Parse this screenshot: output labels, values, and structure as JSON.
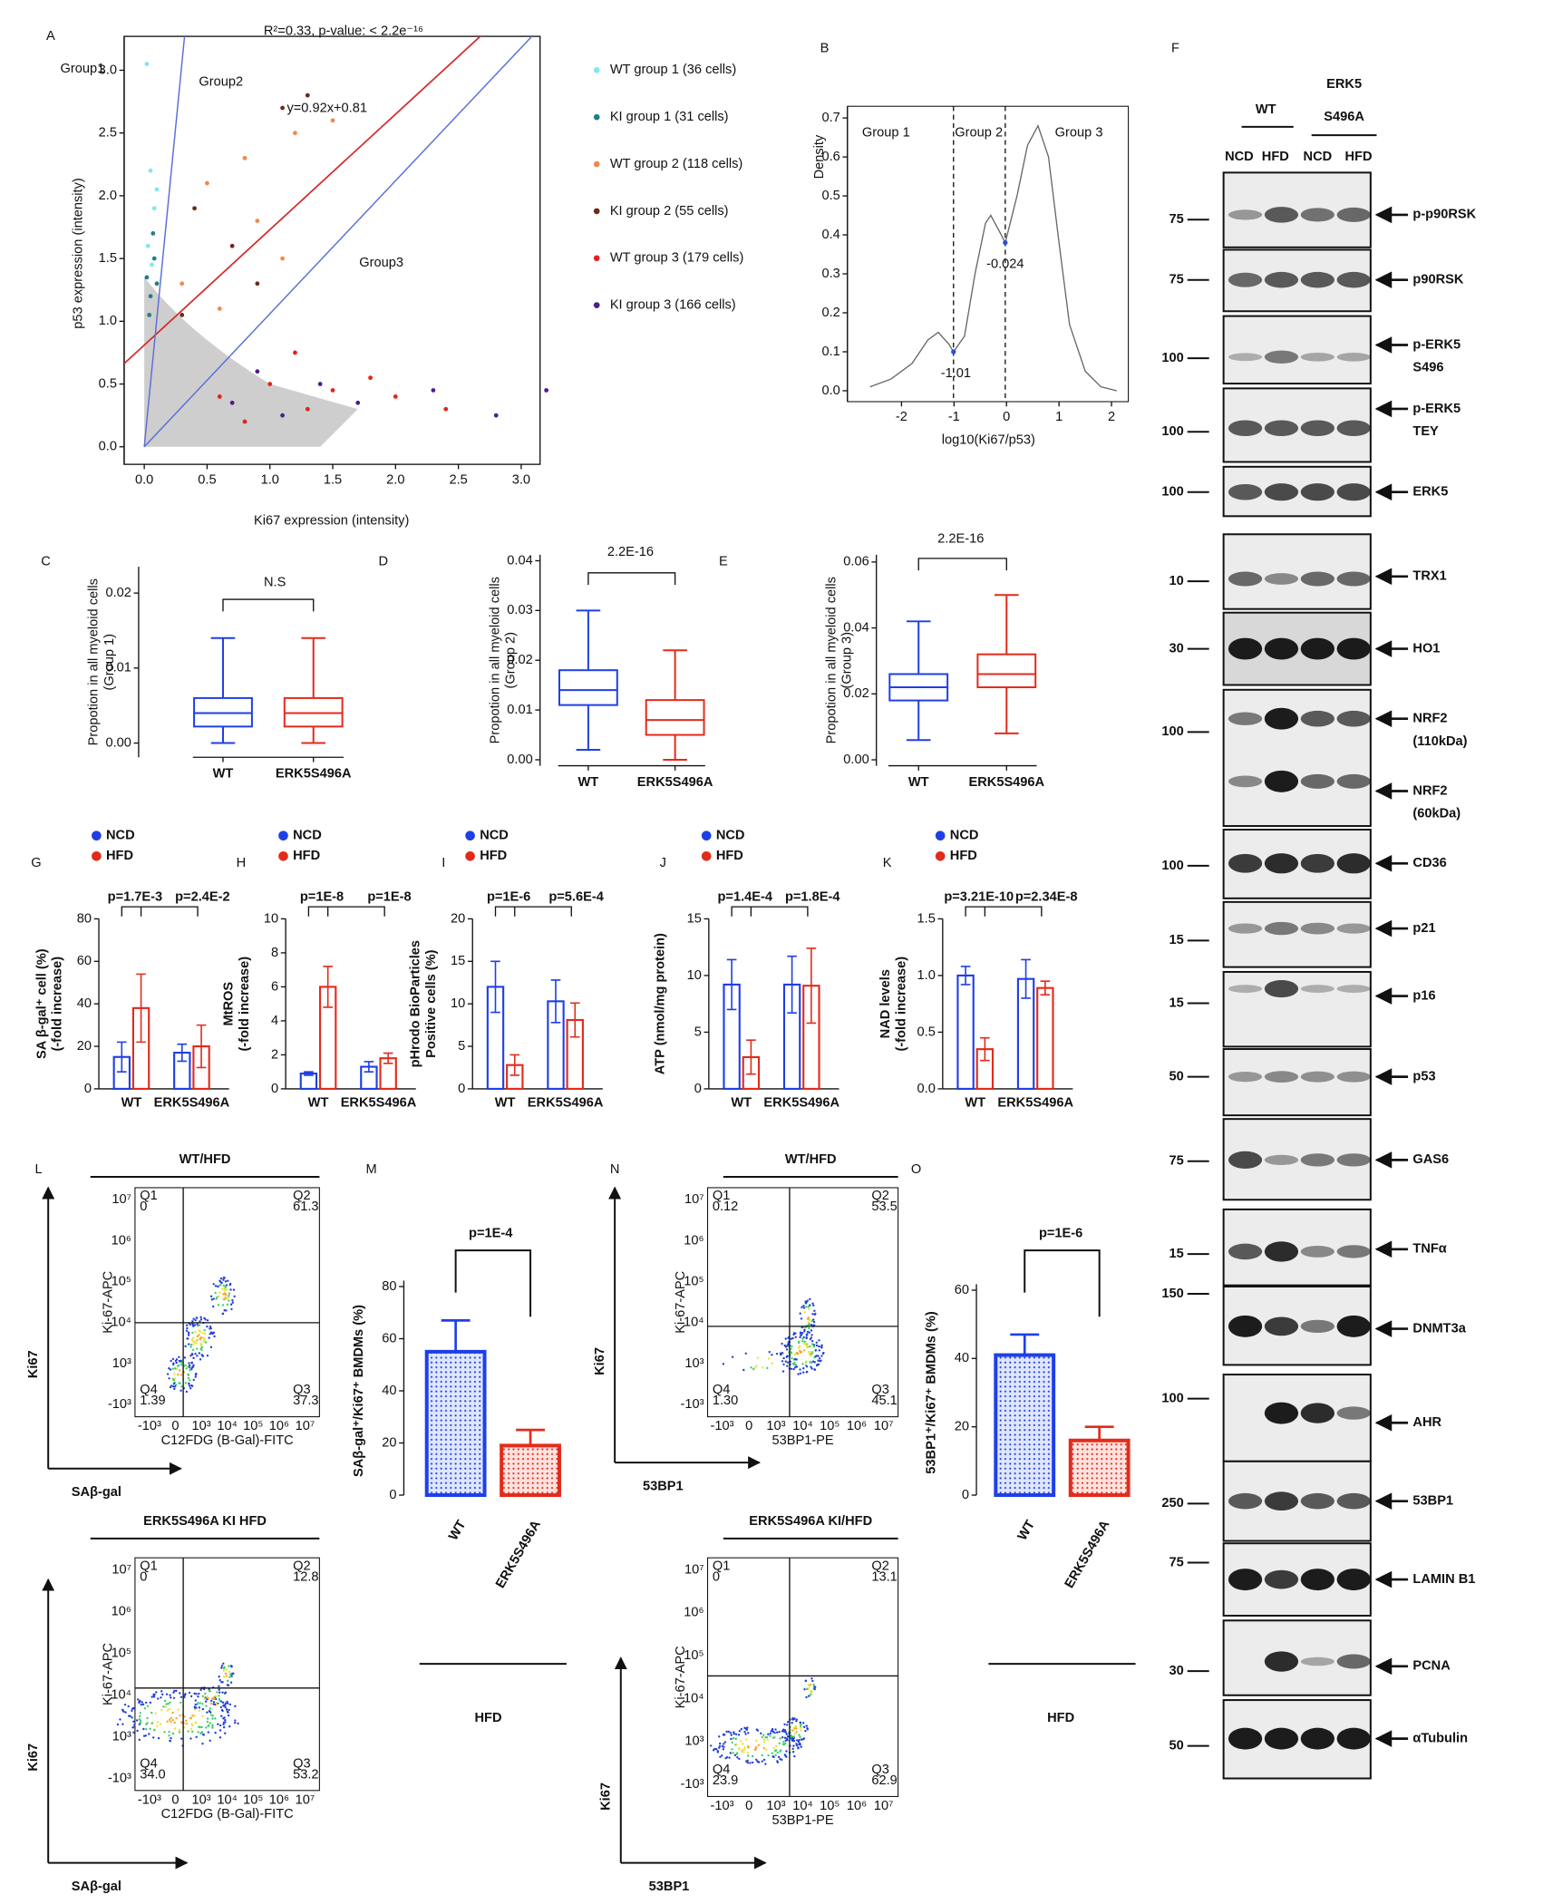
{
  "panel_letters": [
    "A",
    "B",
    "C",
    "D",
    "E",
    "F",
    "G",
    "H",
    "I",
    "J",
    "K",
    "L",
    "M",
    "N",
    "O"
  ],
  "chart_data": [
    {
      "type": "scatter",
      "title": "R²=0.33, p-value: < 2.2e⁻¹⁶",
      "x_label": "Ki67 expression (intensity)",
      "y_label": "p53 expression (intensity)",
      "xlim": [
        -0.16,
        3.15
      ],
      "ylim": [
        -0.14,
        3.27
      ],
      "xticks": [
        {
          "value": 0,
          "label": "0.0"
        },
        0.5,
        {
          "value": 1,
          "label": "1.0"
        },
        1.5,
        {
          "value": 2,
          "label": "2.0"
        },
        2.5,
        {
          "value": 3,
          "label": "3.0"
        }
      ],
      "yticks": [
        {
          "value": 0,
          "label": "0.0"
        },
        0.5,
        {
          "value": 1,
          "label": "1.0"
        },
        1.5,
        {
          "value": 2,
          "label": "2.0"
        },
        2.5,
        {
          "value": 3,
          "label": "3.0"
        }
      ],
      "fit": {
        "slope": 0.92,
        "intercept": 0.81,
        "color": "#d42a2a"
      },
      "boundary_slopes": [
        10.2,
        1.06
      ],
      "boundary_color": "#5b6fd6",
      "annotations": [
        "Group1",
        "Group2",
        "y=0.92x+0.81",
        "Group3"
      ],
      "series": [
        {
          "name": "WT group 1 (36 cells)",
          "color": "#7ee8ee",
          "x": [
            0.02,
            0.05,
            0.08,
            0.03,
            0.06,
            0.1
          ],
          "values": [
            3.05,
            2.2,
            1.9,
            1.6,
            1.45,
            2.05
          ]
        },
        {
          "name": "KI group 1 (31 cells)",
          "color": "#1f7f86",
          "x": [
            0.02,
            0.05,
            0.08,
            0.04,
            0.1,
            0.07
          ],
          "values": [
            1.35,
            1.2,
            1.5,
            1.05,
            1.3,
            1.7
          ]
        },
        {
          "name": "WT group 2 (118 cells)",
          "color": "#f08a4b",
          "x": [
            0.5,
            0.8,
            1.2,
            0.3,
            0.9,
            1.5,
            0.6,
            1.1
          ],
          "values": [
            2.1,
            2.3,
            2.5,
            1.3,
            1.8,
            2.6,
            1.1,
            1.5
          ]
        },
        {
          "name": "KI group 2 (55 cells)",
          "color": "#6b2a1a",
          "x": [
            1.1,
            0.4,
            0.7,
            1.3,
            0.3,
            0.9
          ],
          "values": [
            2.7,
            1.9,
            1.6,
            2.8,
            1.05,
            1.3
          ]
        },
        {
          "name": "WT group 3 (179 cells)",
          "color": "#e3241b",
          "x": [
            0.6,
            1.0,
            1.3,
            1.5,
            2.0,
            0.8,
            1.8,
            2.4,
            1.2
          ],
          "values": [
            0.4,
            0.5,
            0.3,
            0.45,
            0.4,
            0.2,
            0.55,
            0.3,
            0.75
          ]
        },
        {
          "name": "KI group 3 (166 cells)",
          "color": "#4b1f8c",
          "x": [
            0.7,
            1.1,
            1.4,
            1.7,
            2.3,
            2.8,
            3.2,
            0.9
          ],
          "values": [
            0.35,
            0.25,
            0.5,
            0.35,
            0.45,
            0.25,
            0.45,
            0.6
          ]
        }
      ]
    },
    {
      "type": "line",
      "x_label": "log10(Ki67/p53)",
      "y_label": "Density",
      "xlim": [
        -3.03,
        2.32
      ],
      "ylim": [
        -0.028,
        0.73
      ],
      "xticks": [
        -2,
        -1,
        0,
        1,
        2
      ],
      "yticks": [
        {
          "value": 0,
          "label": "0.0"
        },
        0.1,
        0.2,
        0.3,
        0.4,
        0.5,
        0.6,
        0.7
      ],
      "x": [
        -2.6,
        -2.2,
        -1.8,
        -1.5,
        -1.3,
        -1.1,
        -1.01,
        -0.8,
        -0.6,
        -0.4,
        -0.3,
        -0.1,
        -0.024,
        0.2,
        0.4,
        0.6,
        0.8,
        1.0,
        1.2,
        1.5,
        1.8,
        2.1
      ],
      "values": [
        0.01,
        0.03,
        0.07,
        0.13,
        0.15,
        0.12,
        0.1,
        0.14,
        0.3,
        0.43,
        0.45,
        0.4,
        0.38,
        0.5,
        0.63,
        0.68,
        0.6,
        0.38,
        0.17,
        0.05,
        0.01,
        0
      ],
      "color": "#666666",
      "thresholds": [
        -1.01,
        -0.024
      ],
      "annotations": [
        "Group 1",
        "Group 2",
        "Group 3"
      ]
    },
    {
      "type": "box",
      "y_label": [
        "Propotion in all myeloid cells",
        "(Group 1)"
      ],
      "categories": [
        "WT",
        "ERK5S496A"
      ],
      "colors": [
        "#1f3fe6",
        "#e32b1b"
      ],
      "min": [
        0,
        0
      ],
      "q1": [
        0.0022,
        0.0022
      ],
      "median": [
        0.004,
        0.004
      ],
      "q3": [
        0.006,
        0.006
      ],
      "max": [
        0.014,
        0.014
      ],
      "ylim": [
        -0.0019,
        0.0235
      ],
      "yticks": [
        {
          "value": 0,
          "label": "0.00"
        },
        0.01,
        0.02
      ],
      "annotation": "N.S"
    },
    {
      "type": "box",
      "y_label": [
        "Propotion in all myeloid cells",
        "(Group 2)"
      ],
      "categories": [
        "WT",
        "ERK5S496A"
      ],
      "colors": [
        "#1f3fe6",
        "#e32b1b"
      ],
      "min": [
        0.002,
        0
      ],
      "q1": [
        0.011,
        0.005
      ],
      "median": [
        0.014,
        0.008
      ],
      "q3": [
        0.018,
        0.012
      ],
      "max": [
        0.03,
        0.022
      ],
      "ylim": [
        -0.0012,
        0.0412
      ],
      "yticks": [
        {
          "value": 0,
          "label": "0.00"
        },
        0.01,
        0.02,
        0.03,
        0.04
      ],
      "annotation": "2.2E-16"
    },
    {
      "type": "box",
      "y_label": [
        "Propotion in all myeloid cells",
        "(Group 3)"
      ],
      "categories": [
        "WT",
        "ERK5S496A"
      ],
      "colors": [
        "#1f3fe6",
        "#e32b1b"
      ],
      "min": [
        0.006,
        0.008
      ],
      "q1": [
        0.018,
        0.022
      ],
      "median": [
        0.022,
        0.026
      ],
      "q3": [
        0.026,
        0.032
      ],
      "max": [
        0.042,
        0.05
      ],
      "ylim": [
        -0.0018,
        0.0622
      ],
      "yticks": [
        {
          "value": 0,
          "label": "0.00"
        },
        0.02,
        0.04,
        0.06
      ],
      "annotation": "2.2E-16"
    },
    {
      "type": "bar",
      "y_label": [
        "SA β-gal⁺ cell  (%)",
        "(-fold increase)"
      ],
      "categories": [
        "WT",
        "ERK5S496A"
      ],
      "series": [
        {
          "name": "NCD",
          "color": "#1f3fe6",
          "values": [
            15,
            17
          ],
          "errors": [
            7,
            4
          ]
        },
        {
          "name": "HFD",
          "color": "#e32b1b",
          "values": [
            38,
            20
          ],
          "errors": [
            16,
            10
          ]
        }
      ],
      "ylim": [
        0,
        80
      ],
      "yticks": [
        0,
        20,
        40,
        60,
        80
      ],
      "p_values": [
        "p=1.7E-3",
        "p=2.4E-2"
      ]
    },
    {
      "type": "bar",
      "y_label": [
        "MtROS",
        "(-fold increase)"
      ],
      "categories": [
        "WT",
        "ERK5S496A"
      ],
      "series": [
        {
          "name": "NCD",
          "color": "#1f3fe6",
          "values": [
            0.9,
            1.3
          ],
          "errors": [
            0.1,
            0.3
          ]
        },
        {
          "name": "HFD",
          "color": "#e32b1b",
          "values": [
            6,
            1.8
          ],
          "errors": [
            1.2,
            0.3
          ]
        }
      ],
      "ylim": [
        0,
        10
      ],
      "yticks": [
        0,
        2,
        4,
        6,
        8,
        10
      ],
      "p_values": [
        "p=1E-8",
        "p=1E-8"
      ]
    },
    {
      "type": "bar",
      "y_label": [
        "pHrodo BioParticles",
        "Positive cells (%)"
      ],
      "categories": [
        "WT",
        "ERK5S496A"
      ],
      "series": [
        {
          "name": "NCD",
          "color": "#1f3fe6",
          "values": [
            12,
            10.3
          ],
          "errors": [
            3,
            2.5
          ]
        },
        {
          "name": "HFD",
          "color": "#e32b1b",
          "values": [
            2.8,
            8.1
          ],
          "errors": [
            1.2,
            2
          ]
        }
      ],
      "ylim": [
        0,
        20
      ],
      "yticks": [
        0,
        5,
        10,
        15,
        20
      ],
      "p_values": [
        "p=1E-6",
        "p=5.6E-4"
      ]
    },
    {
      "type": "bar",
      "y_label": [
        "ATP (nmol/mg protein)"
      ],
      "categories": [
        "WT",
        "ERK5S496A"
      ],
      "series": [
        {
          "name": "NCD",
          "color": "#1f3fe6",
          "values": [
            9.2,
            9.2
          ],
          "errors": [
            2.2,
            2.5
          ]
        },
        {
          "name": "HFD",
          "color": "#e32b1b",
          "values": [
            2.8,
            9.1
          ],
          "errors": [
            1.5,
            3.3
          ]
        }
      ],
      "ylim": [
        0,
        15
      ],
      "yticks": [
        0,
        5,
        10,
        15
      ],
      "p_values": [
        "p=1.4E-4",
        "p=1.8E-4"
      ]
    },
    {
      "type": "bar",
      "y_label": [
        "NAD levels",
        "(-fold increase)"
      ],
      "categories": [
        "WT",
        "ERK5S496A"
      ],
      "series": [
        {
          "name": "NCD",
          "color": "#1f3fe6",
          "values": [
            1.0,
            0.97
          ],
          "errors": [
            0.08,
            0.17
          ]
        },
        {
          "name": "HFD",
          "color": "#e32b1b",
          "values": [
            0.35,
            0.89
          ],
          "errors": [
            0.1,
            0.06
          ]
        }
      ],
      "ylim": [
        0,
        1.5
      ],
      "yticks": [
        {
          "value": 0,
          "label": "0.0"
        },
        0.5,
        {
          "value": 1,
          "label": "1.0"
        },
        1.5
      ],
      "p_values": [
        "p=3.21E-10",
        "p=2.34E-8"
      ]
    },
    {
      "type": "bar",
      "y_label": [
        "SAβ-gal⁺/Ki67⁺ BMDMs (%)"
      ],
      "categories": [
        "WT",
        "ERK5S496A"
      ],
      "series": [
        {
          "colors": [
            "#1f3fe6",
            "#e32b1b"
          ],
          "values": [
            55,
            19
          ],
          "errors": [
            12,
            6
          ]
        }
      ],
      "ylim": [
        0,
        80
      ],
      "yticks": [
        0,
        20,
        40,
        60,
        80
      ],
      "p_values": [
        "p=1E-4"
      ],
      "group_label": "HFD"
    },
    {
      "type": "bar",
      "y_label": [
        "53BP1⁺/Ki67⁺ BMDMs (%)"
      ],
      "categories": [
        "WT",
        "ERK5S496A"
      ],
      "series": [
        {
          "colors": [
            "#1f3fe6",
            "#e32b1b"
          ],
          "values": [
            41,
            16
          ],
          "errors": [
            6,
            4
          ]
        }
      ],
      "ylim": [
        0,
        60
      ],
      "yticks": [
        0,
        20,
        40,
        60
      ],
      "p_values": [
        "p=1E-6"
      ],
      "group_label": "HFD"
    }
  ],
  "flow_axis_ticks": {
    "x": [
      "-10³",
      "0",
      "10³",
      "10⁴",
      "10⁵",
      "10⁶",
      "10⁷"
    ],
    "y": [
      "-10³",
      "10³",
      "10⁴",
      "10⁵",
      "10⁶",
      "10⁷"
    ]
  },
  "flow_panels": [
    {
      "title": "WT/HFD",
      "y_axis_label": "Ki-67-APC",
      "x_axis_label": "C12FDG (B-Gal)-FITC",
      "big_y": "Ki67",
      "big_x": "SAβ-gal",
      "quadrants": [
        {
          "name": "Q1",
          "value": "0"
        },
        {
          "name": "Q2",
          "value": "61.3"
        },
        {
          "name": "Q4",
          "value": "1.39"
        },
        {
          "name": "Q3",
          "value": "37.3"
        }
      ]
    },
    {
      "title": "ERK5S496A KI HFD",
      "y_axis_label": "Ki-67-APC",
      "x_axis_label": "C12FDG (B-Gal)-FITC",
      "big_y": "Ki67",
      "big_x": "SAβ-gal",
      "quadrants": [
        {
          "name": "Q1",
          "value": "0"
        },
        {
          "name": "Q2",
          "value": "12.8"
        },
        {
          "name": "Q4",
          "value": "34.0"
        },
        {
          "name": "Q3",
          "value": "53.2"
        }
      ]
    },
    {
      "title": "WT/HFD",
      "y_axis_label": "Ki-67-APC",
      "x_axis_label": "53BP1-PE",
      "big_y": "Ki67",
      "big_x": "53BP1",
      "quadrants": [
        {
          "name": "Q1",
          "value": "0.12"
        },
        {
          "name": "Q2",
          "value": "53.5"
        },
        {
          "name": "Q4",
          "value": "1.30"
        },
        {
          "name": "Q3",
          "value": "45.1"
        }
      ]
    },
    {
      "title": "ERK5S496A KI/HFD",
      "y_axis_label": "Ki-67-APC",
      "x_axis_label": "53BP1-PE",
      "big_y": "Ki67",
      "big_x": "53BP1",
      "quadrants": [
        {
          "name": "Q1",
          "value": "0"
        },
        {
          "name": "Q2",
          "value": "13.1"
        },
        {
          "name": "Q4",
          "value": "23.9"
        },
        {
          "name": "Q3",
          "value": "62.9"
        }
      ]
    }
  ],
  "western_blot": {
    "groups": [
      [
        "WT"
      ],
      [
        "ERK5",
        "S496A"
      ]
    ],
    "lanes": [
      "NCD",
      "HFD",
      "NCD",
      "HFD"
    ],
    "rows": [
      {
        "marker": 75,
        "label": [
          "p-p90RSK"
        ]
      },
      {
        "marker": 75,
        "label": [
          "p90RSK"
        ]
      },
      {
        "marker": 100,
        "label": [
          "p-ERK5",
          "S496"
        ]
      },
      {
        "marker": 100,
        "label": [
          "p-ERK5",
          "TEY"
        ]
      },
      {
        "marker": 100,
        "label": [
          "ERK5"
        ]
      },
      {
        "marker": 10,
        "label": [
          "TRX1"
        ]
      },
      {
        "marker": 30,
        "label": [
          "HO1"
        ]
      },
      {
        "marker": 100,
        "label": [
          "NRF2",
          "(110kDa)"
        ]
      },
      {
        "label": [
          "NRF2",
          "(60kDa)"
        ]
      },
      {
        "marker": 100,
        "label": [
          "CD36"
        ]
      },
      {
        "marker": 15,
        "label": [
          "p21"
        ]
      },
      {
        "marker": 15,
        "label": [
          "p16"
        ]
      },
      {
        "marker": 50,
        "label": [
          "p53"
        ]
      },
      {
        "marker": 75,
        "label": [
          "GAS6"
        ]
      },
      {
        "marker": 15,
        "label": [
          "TNFα"
        ]
      },
      {
        "marker": 150,
        "label": [
          "DNMT3a"
        ]
      },
      {
        "marker": 100,
        "label": [
          "AHR"
        ]
      },
      {
        "marker": 250,
        "label": [
          "53BP1"
        ]
      },
      {
        "marker": 75,
        "label": [
          "LAMIN B1"
        ]
      },
      {
        "marker": 30,
        "label": [
          "PCNA"
        ]
      },
      {
        "marker": 50,
        "label": [
          "αTubulin"
        ]
      }
    ]
  }
}
